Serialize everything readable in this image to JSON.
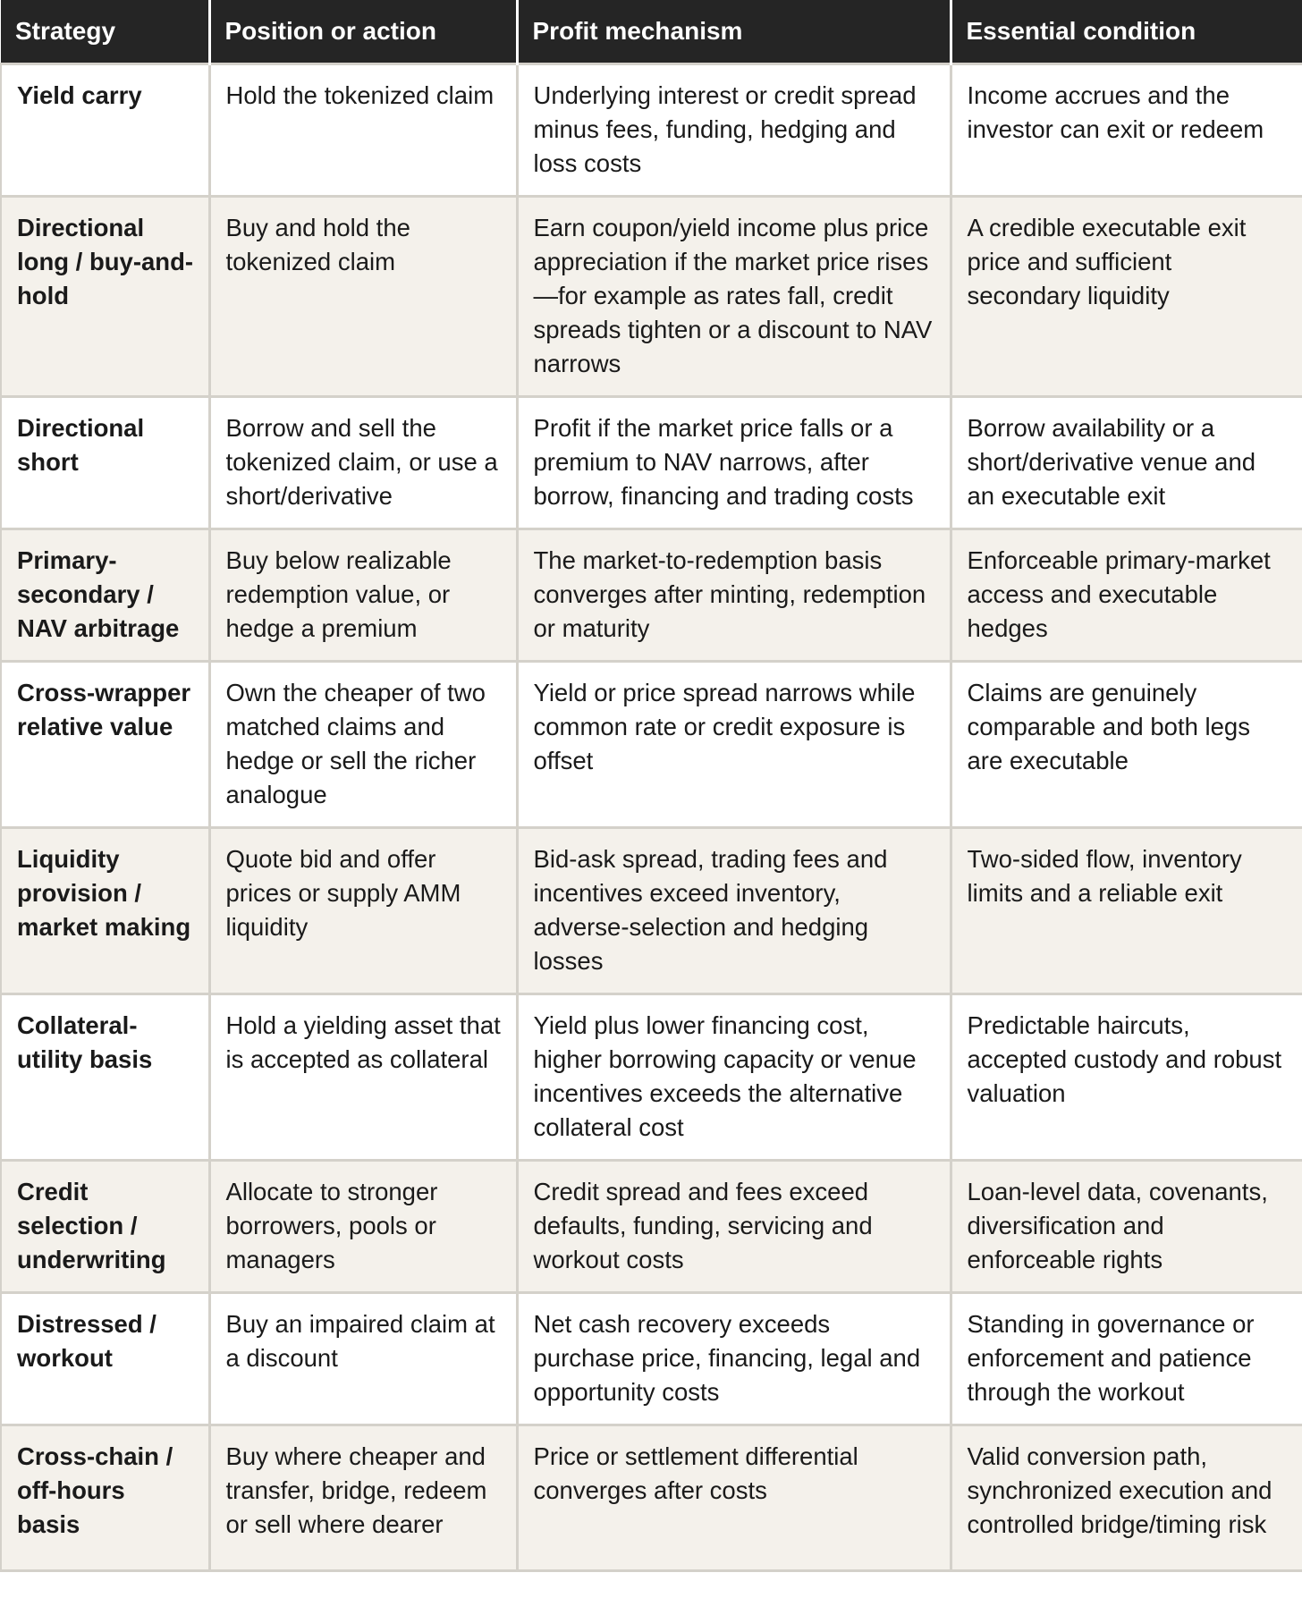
{
  "headers": [
    "Strategy",
    "Position or action",
    "Profit mechanism",
    "Essential condition"
  ],
  "rows": [
    [
      "Yield carry",
      "Hold the tokenized claim",
      "Underlying interest or credit spread minus fees, funding, hedging and loss costs",
      "Income accrues and the investor can exit or redeem"
    ],
    [
      "Directional long / buy-and-hold",
      "Buy and hold the tokenized claim",
      "Earn coupon/yield income plus price appreciation if the market price rises—for example as rates fall, credit spreads tighten or a discount to NAV narrows",
      "A credible executable exit price and sufficient secondary liquidity"
    ],
    [
      "Directional short",
      "Borrow and sell the tokenized claim, or use a short/derivative",
      "Profit if the market price falls or a premium to NAV narrows, after borrow, financing and trading costs",
      "Borrow availability or a short/derivative venue and an executable exit"
    ],
    [
      "Primary-secondary / NAV arbitrage",
      "Buy below realizable redemption value, or hedge a premium",
      "The market-to-redemption basis converges after minting, redemption or maturity",
      "Enforceable primary-market access and executable hedges"
    ],
    [
      "Cross-wrapper relative value",
      "Own the cheaper of two matched claims and hedge or sell the richer analogue",
      "Yield or price spread narrows while common rate or credit exposure is offset",
      "Claims are genuinely comparable and both legs are executable"
    ],
    [
      "Liquidity provision / market making",
      "Quote bid and offer prices or supply AMM liquidity",
      "Bid-ask spread, trading fees and incentives exceed inventory, adverse-selection and hedging losses",
      "Two-sided flow, inventory limits and a reliable exit"
    ],
    [
      "Collateral-utility basis",
      "Hold a yielding asset that is accepted as collateral",
      "Yield plus lower financing cost, higher borrowing capacity or venue incentives exceeds the alternative collateral cost",
      "Predictable haircuts, accepted custody and robust valuation"
    ],
    [
      "Credit selection / underwriting",
      "Allocate to stronger borrowers, pools or managers",
      "Credit spread and fees exceed defaults, funding, servicing and workout costs",
      "Loan-level data, covenants, diversification and enforceable rights"
    ],
    [
      "Distressed / workout",
      "Buy an impaired claim at a discount",
      "Net cash recovery exceeds purchase price, financing, legal and opportunity costs",
      "Standing in governance or enforcement and patience through the workout"
    ],
    [
      "Cross-chain / off-hours basis",
      "Buy where cheaper and transfer, bridge, redeem or sell where dearer",
      "Price or settlement differential converges after costs",
      "Valid conversion path, synchronized execution and controlled bridge/timing risk"
    ]
  ]
}
